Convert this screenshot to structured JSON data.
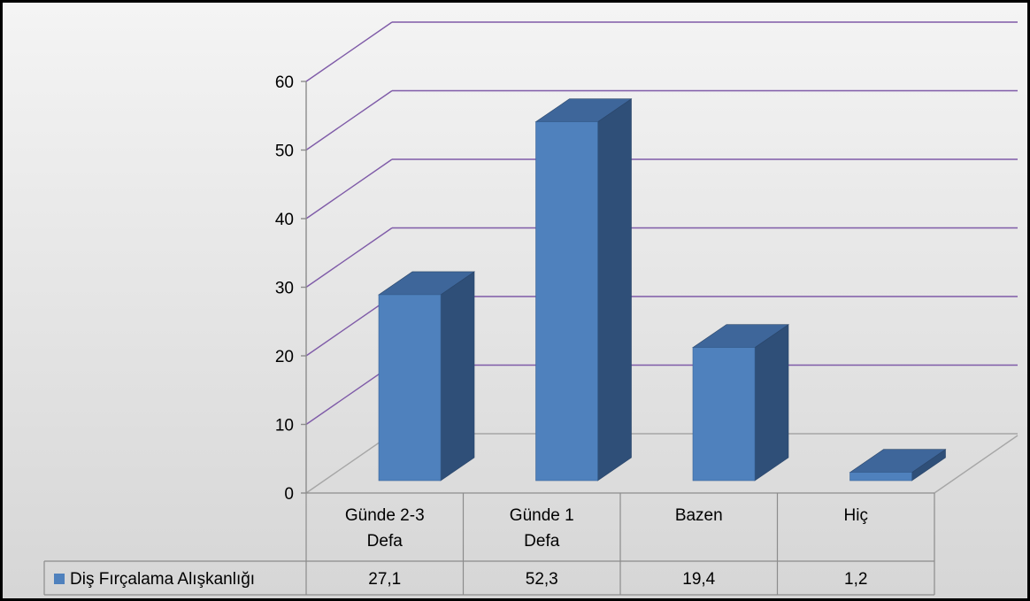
{
  "chart_data": {
    "type": "bar",
    "categories": [
      [
        "Günde 2-3",
        "Defa"
      ],
      [
        "Günde 1",
        "Defa"
      ],
      [
        "Bazen"
      ],
      [
        "Hiç"
      ]
    ],
    "series": [
      {
        "name": "Diş Fırçalama Alışkanlığı",
        "values": [
          27.1,
          52.3,
          19.4,
          1.2
        ]
      }
    ],
    "value_labels": [
      "27,1",
      "52,3",
      "19,4",
      "1,2"
    ],
    "y_ticks": [
      "0",
      "10",
      "20",
      "30",
      "40",
      "50",
      "60"
    ],
    "ylim": [
      0,
      60
    ],
    "grid": true,
    "legend": "data-table",
    "colors": {
      "bar_front": "#4f81bd",
      "bar_side": "#2f4f78",
      "bar_top": "#3e669a",
      "grid": "#7f5ba8",
      "table_line": "#8c8c8c"
    }
  }
}
